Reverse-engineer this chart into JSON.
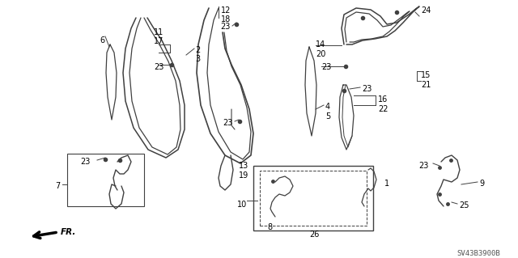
{
  "part_code": "SV43B3900B",
  "bg_color": "#ffffff",
  "line_color": "#404040",
  "text_color": "#000000",
  "figsize": [
    6.4,
    3.19
  ],
  "dpi": 100,
  "xlim": [
    0,
    640
  ],
  "ylim": [
    0,
    319
  ]
}
